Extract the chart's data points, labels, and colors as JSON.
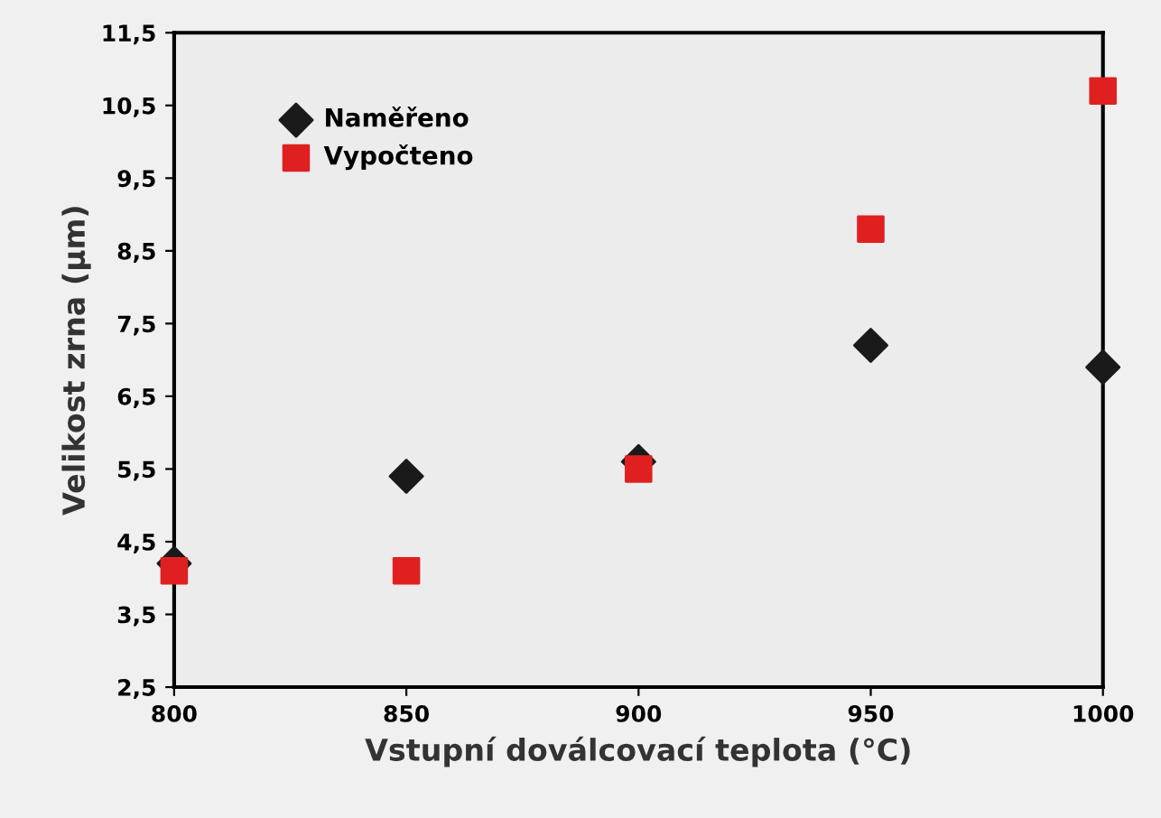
{
  "chart_data": {
    "type": "scatter",
    "xlabel": "Vstupní doválcovací teplota (°C)",
    "ylabel": "Velikost zrna (µm)",
    "x": [
      800,
      850,
      900,
      950,
      1000
    ],
    "series": [
      {
        "name": "Naměřeno",
        "color": "#1a1a1a",
        "marker": "diamond",
        "values": [
          4.2,
          5.4,
          5.6,
          7.2,
          6.9
        ]
      },
      {
        "name": "Vypočteno",
        "color": "#e02020",
        "marker": "square",
        "values": [
          4.1,
          4.1,
          5.5,
          8.8,
          10.7
        ]
      }
    ],
    "xlim": [
      800,
      1000
    ],
    "xticks": [
      800,
      850,
      900,
      950,
      1000
    ],
    "ylim": [
      2.5,
      11.5
    ],
    "yticks": [
      {
        "value": 2.5,
        "label": "2,5"
      },
      {
        "value": 3.5,
        "label": "3,5"
      },
      {
        "value": 4.5,
        "label": "4,5"
      },
      {
        "value": 5.5,
        "label": "5,5"
      },
      {
        "value": 6.5,
        "label": "6,5"
      },
      {
        "value": 7.5,
        "label": "7,5"
      },
      {
        "value": 8.5,
        "label": "8,5"
      },
      {
        "value": 9.5,
        "label": "9,5"
      },
      {
        "value": 10.5,
        "label": "10,5"
      },
      {
        "value": 11.5,
        "label": "11,5"
      }
    ],
    "grid": false,
    "legend": "top left"
  }
}
